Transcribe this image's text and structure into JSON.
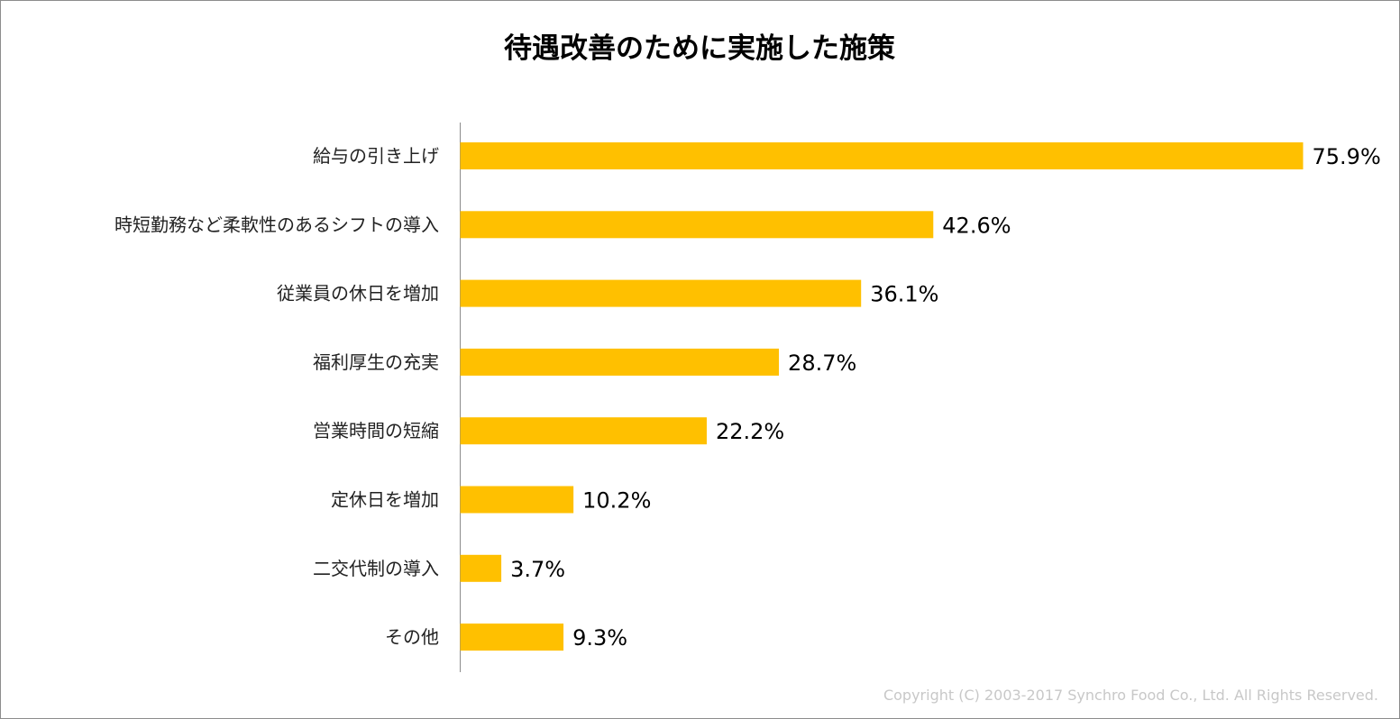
{
  "chart_data": {
    "type": "bar",
    "orientation": "horizontal",
    "title": "待遇改善のために実施した施策",
    "categories": [
      "給与の引き上げ",
      "時短勤務など柔軟性のあるシフトの導入",
      "従業員の休日を増加",
      "福利厚生の充実",
      "営業時間の短縮",
      "定休日を増加",
      "二交代制の導入",
      "その他"
    ],
    "values": [
      75.9,
      42.6,
      36.1,
      28.7,
      22.2,
      10.2,
      3.7,
      9.3
    ],
    "value_labels": [
      "75.9%",
      "42.6%",
      "36.1%",
      "28.7%",
      "22.2%",
      "10.2%",
      "3.7%",
      "9.3%"
    ],
    "xlabel": "",
    "ylabel": "",
    "xlim": [
      0,
      76
    ],
    "grid": false,
    "bar_color": "#FFC000"
  },
  "footer": {
    "copyright": "Copyright (C) 2003-2017  Synchro Food Co., Ltd. All Rights Reserved."
  }
}
